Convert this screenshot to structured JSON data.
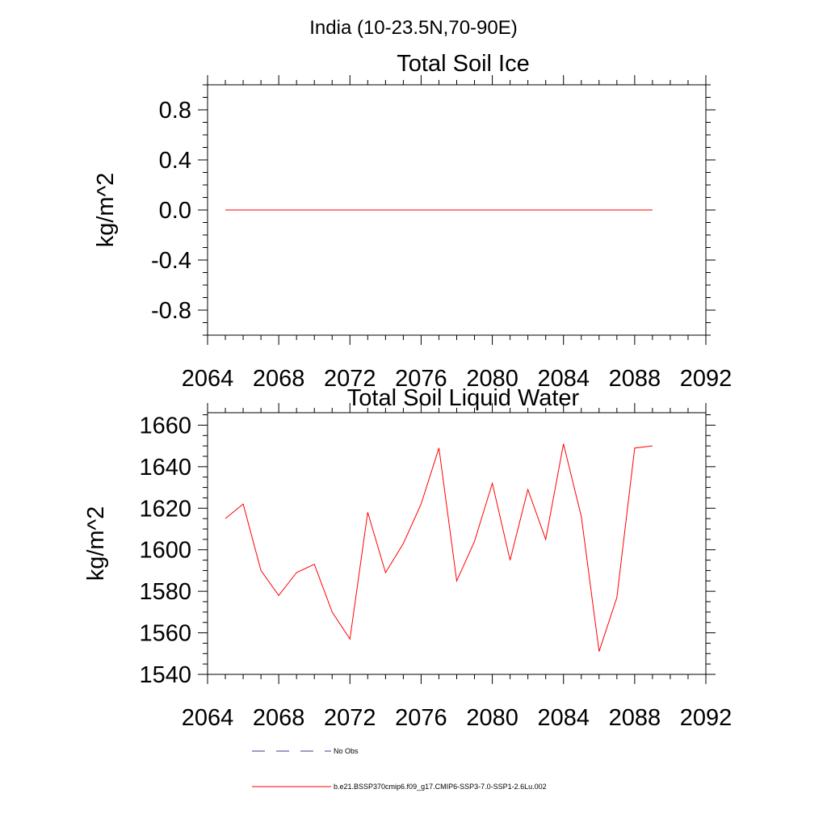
{
  "figure": {
    "title": "India (10-23.5N,70-90E)"
  },
  "colors": {
    "series": "#ff0000",
    "obs": "#3c3c8c",
    "axis": "#000000",
    "background": "#ffffff"
  },
  "chart_data": [
    {
      "type": "line",
      "title": "Total Soil Ice",
      "xlabel": "",
      "ylabel": "kg/m^2",
      "xlim": [
        2064,
        2092
      ],
      "ylim": [
        -1.0,
        1.0
      ],
      "xticks": [
        2064,
        2068,
        2072,
        2076,
        2080,
        2084,
        2088,
        2092
      ],
      "xtick_labels": [
        "2064",
        "2068",
        "2072",
        "2076",
        "2080",
        "2084",
        "2088",
        "2092"
      ],
      "yticks": [
        -0.8,
        -0.4,
        0.0,
        0.4,
        0.8
      ],
      "ytick_labels": [
        "-0.8",
        "-0.4",
        "0.0",
        "0.4",
        "0.8"
      ],
      "grid": false,
      "x": [
        2065,
        2066,
        2067,
        2068,
        2069,
        2070,
        2071,
        2072,
        2073,
        2074,
        2075,
        2076,
        2077,
        2078,
        2079,
        2080,
        2081,
        2082,
        2083,
        2084,
        2085,
        2086,
        2087,
        2088,
        2089
      ],
      "series": [
        {
          "name": "b.e21.BSSP370cmip6.f09_g17.CMIP6-SSP3-7.0-SSP1-2.6Lu.002",
          "values": [
            0,
            0,
            0,
            0,
            0,
            0,
            0,
            0,
            0,
            0,
            0,
            0,
            0,
            0,
            0,
            0,
            0,
            0,
            0,
            0,
            0,
            0,
            0,
            0,
            0
          ]
        }
      ]
    },
    {
      "type": "line",
      "title": "Total Soil Liquid Water",
      "xlabel": "",
      "ylabel": "kg/m^2",
      "xlim": [
        2064,
        2092
      ],
      "ylim": [
        1540,
        1666
      ],
      "xticks": [
        2064,
        2068,
        2072,
        2076,
        2080,
        2084,
        2088,
        2092
      ],
      "xtick_labels": [
        "2064",
        "2068",
        "2072",
        "2076",
        "2080",
        "2084",
        "2088",
        "2092"
      ],
      "yticks": [
        1540,
        1560,
        1580,
        1600,
        1620,
        1640,
        1660
      ],
      "ytick_labels": [
        "1540",
        "1560",
        "1580",
        "1600",
        "1620",
        "1640",
        "1660"
      ],
      "grid": false,
      "x": [
        2065,
        2066,
        2067,
        2068,
        2069,
        2070,
        2071,
        2072,
        2073,
        2074,
        2075,
        2076,
        2077,
        2078,
        2079,
        2080,
        2081,
        2082,
        2083,
        2084,
        2085,
        2086,
        2087,
        2088,
        2089
      ],
      "series": [
        {
          "name": "b.e21.BSSP370cmip6.f09_g17.CMIP6-SSP3-7.0-SSP1-2.6Lu.002",
          "values": [
            1615,
            1622,
            1590,
            1578,
            1589,
            1593,
            1570,
            1557,
            1618,
            1589,
            1603,
            1622,
            1649,
            1585,
            1604,
            1632,
            1595,
            1629,
            1605,
            1651,
            1616,
            1551,
            1577,
            1649,
            1650
          ]
        }
      ]
    }
  ],
  "legend": {
    "placement": "bottom",
    "entries": [
      {
        "label": "No Obs",
        "style": "dashed",
        "color": "#3c3c8c"
      },
      {
        "label": "b.e21.BSSP370cmip6.f09_g17.CMIP6-SSP3-7.0-SSP1-2.6Lu.002",
        "style": "solid",
        "color": "#ff0000"
      }
    ]
  }
}
